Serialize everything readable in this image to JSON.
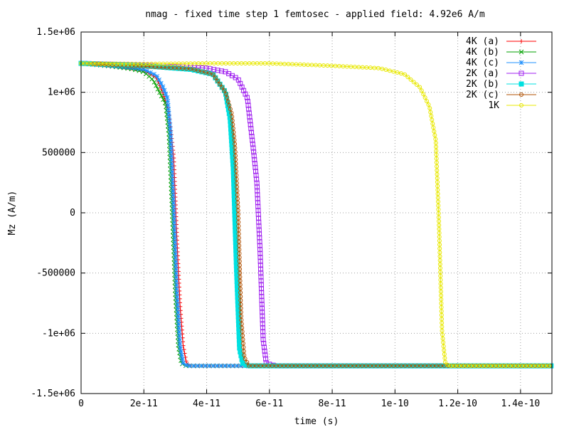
{
  "chart_data": {
    "type": "line",
    "title": "nmag - fixed time step 1 femtosec - applied field: 4.92e6 A/m",
    "xlabel": "time (s)",
    "ylabel": "Mz (A/m)",
    "xlim": [
      0,
      1.5e-10
    ],
    "ylim": [
      -1500000,
      1500000
    ],
    "xticks": [
      {
        "value": 0,
        "label": "0"
      },
      {
        "value": 2e-11,
        "label": "2e-11"
      },
      {
        "value": 4e-11,
        "label": "4e-11"
      },
      {
        "value": 6e-11,
        "label": "6e-11"
      },
      {
        "value": 8e-11,
        "label": "8e-11"
      },
      {
        "value": 1e-10,
        "label": "1e-10"
      },
      {
        "value": 1.2e-10,
        "label": "1.2e-10"
      },
      {
        "value": 1.4e-10,
        "label": "1.4e-10"
      }
    ],
    "yticks": [
      {
        "value": 1500000,
        "label": "1.5e+06"
      },
      {
        "value": 1000000,
        "label": "1e+06"
      },
      {
        "value": 500000,
        "label": "500000"
      },
      {
        "value": 0,
        "label": "0"
      },
      {
        "value": -500000,
        "label": "-500000"
      },
      {
        "value": -1000000,
        "label": "-1e+06"
      },
      {
        "value": -1500000,
        "label": "-1.5e+06"
      }
    ],
    "grid": true,
    "legend_position": "top-right",
    "series": [
      {
        "name": "4K (a)",
        "color": "#ff0000",
        "marker": "plus",
        "x": [
          0,
          1e-11,
          1.6e-11,
          2e-11,
          2.4e-11,
          2.6e-11,
          2.8e-11,
          2.95e-11,
          3.05e-11,
          3.15e-11,
          3.25e-11,
          3.35e-11,
          3.45e-11,
          5e-11,
          1e-10,
          1.5e-10
        ],
        "y": [
          1240000,
          1220000,
          1200000,
          1180000,
          1120000,
          1000000,
          830000,
          460000,
          -200000,
          -760000,
          -1100000,
          -1240000,
          -1270000,
          -1270000,
          -1270000,
          -1270000
        ]
      },
      {
        "name": "4K (b)",
        "color": "#00a000",
        "marker": "cross",
        "x": [
          0,
          1e-11,
          1.6e-11,
          2e-11,
          2.3e-11,
          2.5e-11,
          2.7e-11,
          2.8e-11,
          2.9e-11,
          3e-11,
          3.1e-11,
          3.2e-11,
          3.35e-11,
          5e-11,
          1e-10,
          1.5e-10
        ],
        "y": [
          1240000,
          1215000,
          1195000,
          1170000,
          1100000,
          1000000,
          900000,
          650000,
          50000,
          -650000,
          -1100000,
          -1250000,
          -1270000,
          -1270000,
          -1270000,
          -1270000
        ]
      },
      {
        "name": "4K (c)",
        "color": "#1e90ff",
        "marker": "star",
        "x": [
          0,
          1e-11,
          1.6e-11,
          2e-11,
          2.4e-11,
          2.6e-11,
          2.75e-11,
          2.85e-11,
          2.95e-11,
          3.05e-11,
          3.15e-11,
          3.25e-11,
          3.4e-11,
          5e-11,
          1e-10,
          1.5e-10
        ],
        "y": [
          1240000,
          1220000,
          1205000,
          1190000,
          1140000,
          1050000,
          950000,
          660000,
          50000,
          -650000,
          -1100000,
          -1250000,
          -1270000,
          -1270000,
          -1270000,
          -1270000
        ]
      },
      {
        "name": "2K (a)",
        "color": "#a020f0",
        "marker": "square-open",
        "x": [
          0,
          2e-11,
          4e-11,
          4.6e-11,
          5e-11,
          5.3e-11,
          5.5e-11,
          5.6e-11,
          5.7e-11,
          5.8e-11,
          5.9e-11,
          6.2e-11,
          1e-10,
          1.5e-10
        ],
        "y": [
          1240000,
          1225000,
          1200000,
          1170000,
          1110000,
          950000,
          500000,
          250000,
          -300000,
          -1050000,
          -1250000,
          -1270000,
          -1270000,
          -1270000
        ]
      },
      {
        "name": "2K (b)",
        "color": "#00e0e0",
        "marker": "square-filled",
        "x": [
          0,
          2e-11,
          3.5e-11,
          4.2e-11,
          4.6e-11,
          4.75e-11,
          4.85e-11,
          4.95e-11,
          5.05e-11,
          5.15e-11,
          5.3e-11,
          1e-10,
          1.5e-10
        ],
        "y": [
          1240000,
          1220000,
          1190000,
          1150000,
          1000000,
          780000,
          360000,
          -460000,
          -1130000,
          -1250000,
          -1270000,
          -1270000,
          -1270000
        ]
      },
      {
        "name": "2K (c)",
        "color": "#b05000",
        "marker": "circle-open",
        "x": [
          0,
          2e-11,
          3.5e-11,
          4.2e-11,
          4.6e-11,
          4.8e-11,
          4.9e-11,
          5e-11,
          5.1e-11,
          5.2e-11,
          5.35e-11,
          1e-10,
          1.5e-10
        ],
        "y": [
          1240000,
          1215000,
          1195000,
          1150000,
          1000000,
          820000,
          560000,
          30000,
          -870000,
          -1200000,
          -1270000,
          -1270000,
          -1270000
        ]
      },
      {
        "name": "1K",
        "color": "#e8e800",
        "marker": "circle-open",
        "x": [
          0,
          2e-11,
          4e-11,
          6e-11,
          8e-11,
          9.5e-11,
          1.03e-10,
          1.08e-10,
          1.11e-10,
          1.13e-10,
          1.14e-10,
          1.15e-10,
          1.16e-10,
          1.17e-10,
          1.2e-10,
          1.5e-10
        ],
        "y": [
          1240000,
          1235000,
          1240000,
          1240000,
          1220000,
          1200000,
          1150000,
          1040000,
          880000,
          600000,
          -80000,
          -980000,
          -1240000,
          -1270000,
          -1270000,
          -1270000
        ]
      }
    ]
  }
}
